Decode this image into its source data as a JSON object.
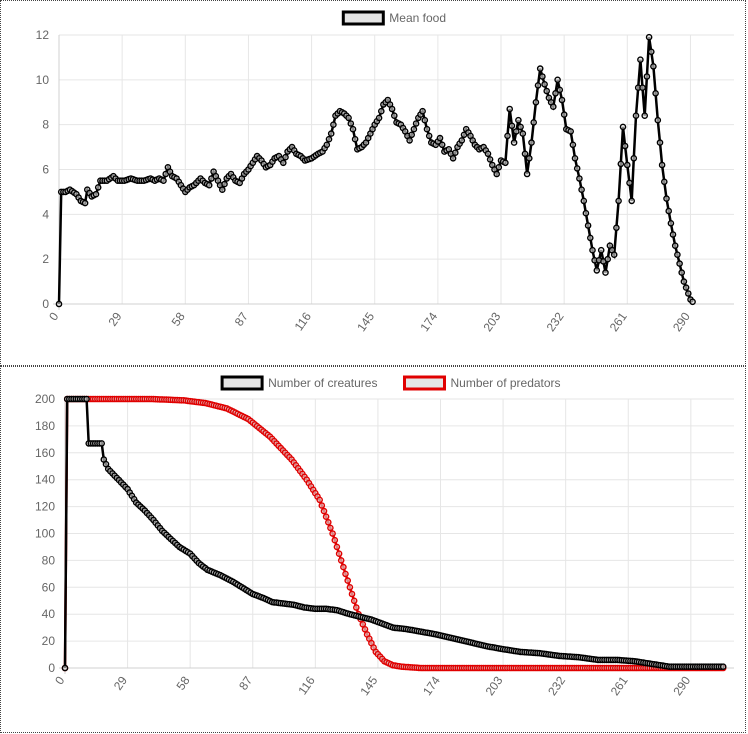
{
  "chart_data": [
    {
      "type": "line",
      "series": [
        {
          "name": "Mean food",
          "color": "#000000"
        }
      ],
      "x_ticks": [
        0,
        29,
        58,
        87,
        116,
        145,
        174,
        203,
        232,
        261,
        290
      ],
      "y_ticks": [
        0,
        2,
        4,
        6,
        8,
        10,
        12
      ],
      "xlim": [
        0,
        310
      ],
      "ylim": [
        0,
        12
      ],
      "legend": "top",
      "grid": true,
      "keypoints": [
        [
          0,
          0
        ],
        [
          1,
          5
        ],
        [
          3,
          5
        ],
        [
          5,
          5.1
        ],
        [
          8,
          4.9
        ],
        [
          10,
          4.6
        ],
        [
          12,
          4.5
        ],
        [
          13,
          5.1
        ],
        [
          15,
          4.8
        ],
        [
          17,
          4.9
        ],
        [
          19,
          5.5
        ],
        [
          22,
          5.5
        ],
        [
          25,
          5.7
        ],
        [
          27,
          5.5
        ],
        [
          30,
          5.5
        ],
        [
          33,
          5.6
        ],
        [
          36,
          5.5
        ],
        [
          39,
          5.5
        ],
        [
          42,
          5.6
        ],
        [
          44,
          5.5
        ],
        [
          46,
          5.6
        ],
        [
          48,
          5.5
        ],
        [
          50,
          6.1
        ],
        [
          52,
          5.7
        ],
        [
          54,
          5.6
        ],
        [
          56,
          5.3
        ],
        [
          58,
          5
        ],
        [
          60,
          5.2
        ],
        [
          62,
          5.3
        ],
        [
          65,
          5.6
        ],
        [
          67,
          5.4
        ],
        [
          69,
          5.3
        ],
        [
          71,
          5.9
        ],
        [
          73,
          5.5
        ],
        [
          75,
          5.1
        ],
        [
          77,
          5.6
        ],
        [
          79,
          5.8
        ],
        [
          81,
          5.5
        ],
        [
          83,
          5.4
        ],
        [
          85,
          5.8
        ],
        [
          87,
          6
        ],
        [
          89,
          6.3
        ],
        [
          91,
          6.6
        ],
        [
          93,
          6.4
        ],
        [
          95,
          6.1
        ],
        [
          97,
          6.2
        ],
        [
          99,
          6.5
        ],
        [
          101,
          6.6
        ],
        [
          103,
          6.3
        ],
        [
          105,
          6.8
        ],
        [
          107,
          7
        ],
        [
          109,
          6.7
        ],
        [
          111,
          6.6
        ],
        [
          113,
          6.4
        ],
        [
          116,
          6.5
        ],
        [
          119,
          6.7
        ],
        [
          121,
          6.8
        ],
        [
          123,
          7.1
        ],
        [
          125,
          7.6
        ],
        [
          127,
          8.4
        ],
        [
          129,
          8.6
        ],
        [
          131,
          8.5
        ],
        [
          133,
          8.3
        ],
        [
          135,
          7.8
        ],
        [
          137,
          6.9
        ],
        [
          139,
          7
        ],
        [
          141,
          7.2
        ],
        [
          143,
          7.6
        ],
        [
          145,
          8
        ],
        [
          147,
          8.3
        ],
        [
          149,
          8.9
        ],
        [
          151,
          9.1
        ],
        [
          153,
          8.7
        ],
        [
          155,
          8.1
        ],
        [
          157,
          8
        ],
        [
          159,
          7.7
        ],
        [
          161,
          7.3
        ],
        [
          163,
          7.8
        ],
        [
          165,
          8.3
        ],
        [
          167,
          8.6
        ],
        [
          169,
          7.8
        ],
        [
          171,
          7.2
        ],
        [
          173,
          7.1
        ],
        [
          175,
          7.4
        ],
        [
          177,
          6.8
        ],
        [
          179,
          6.9
        ],
        [
          181,
          6.5
        ],
        [
          183,
          7
        ],
        [
          185,
          7.3
        ],
        [
          187,
          7.8
        ],
        [
          189,
          7.5
        ],
        [
          191,
          7.1
        ],
        [
          193,
          6.9
        ],
        [
          195,
          7
        ],
        [
          197,
          6.7
        ],
        [
          199,
          6.2
        ],
        [
          201,
          5.8
        ],
        [
          203,
          6.4
        ],
        [
          205,
          6.3
        ],
        [
          207,
          8.7
        ],
        [
          209,
          7.2
        ],
        [
          211,
          8.2
        ],
        [
          213,
          7.6
        ],
        [
          215,
          5.8
        ],
        [
          217,
          7.2
        ],
        [
          219,
          9
        ],
        [
          221,
          10.5
        ],
        [
          223,
          9.8
        ],
        [
          225,
          9.2
        ],
        [
          227,
          8.8
        ],
        [
          229,
          10
        ],
        [
          231,
          9.1
        ],
        [
          233,
          7.8
        ],
        [
          235,
          7.7
        ],
        [
          237,
          6.5
        ],
        [
          239,
          5.6
        ],
        [
          241,
          4.6
        ],
        [
          243,
          3.5
        ],
        [
          245,
          2.4
        ],
        [
          247,
          1.5
        ],
        [
          249,
          2.4
        ],
        [
          251,
          1.4
        ],
        [
          253,
          2.6
        ],
        [
          255,
          2.2
        ],
        [
          257,
          4.6
        ],
        [
          259,
          7.9
        ],
        [
          261,
          6.2
        ],
        [
          263,
          4.6
        ],
        [
          265,
          8.4
        ],
        [
          267,
          10.9
        ],
        [
          269,
          8.4
        ],
        [
          271,
          11.9
        ],
        [
          273,
          10.6
        ],
        [
          275,
          8.2
        ],
        [
          277,
          6.2
        ],
        [
          279,
          4.7
        ],
        [
          281,
          3.6
        ],
        [
          283,
          2.6
        ],
        [
          285,
          1.8
        ],
        [
          287,
          1
        ],
        [
          290,
          0.2
        ],
        [
          291,
          0.1
        ]
      ]
    },
    {
      "type": "line",
      "series": [
        {
          "name": "Number of creatures",
          "color": "#000000"
        },
        {
          "name": "Number of predators",
          "color": "#e00000"
        }
      ],
      "x_ticks": [
        0,
        29,
        58,
        87,
        116,
        145,
        174,
        203,
        232,
        261,
        290
      ],
      "y_ticks": [
        0,
        20,
        40,
        60,
        80,
        100,
        120,
        140,
        160,
        180,
        200
      ],
      "xlim": [
        0,
        310
      ],
      "ylim": [
        0,
        200
      ],
      "legend": "top",
      "grid": true,
      "creatures_keypoints": [
        [
          0,
          0
        ],
        [
          1,
          200
        ],
        [
          10,
          200
        ],
        [
          11,
          167
        ],
        [
          17,
          167
        ],
        [
          18,
          155
        ],
        [
          20,
          148
        ],
        [
          23,
          143
        ],
        [
          26,
          138
        ],
        [
          29,
          133
        ],
        [
          33,
          123
        ],
        [
          37,
          117
        ],
        [
          41,
          110
        ],
        [
          45,
          102
        ],
        [
          49,
          96
        ],
        [
          53,
          90
        ],
        [
          58,
          85
        ],
        [
          62,
          78
        ],
        [
          66,
          73
        ],
        [
          72,
          69
        ],
        [
          78,
          64
        ],
        [
          84,
          58
        ],
        [
          87,
          55
        ],
        [
          92,
          52
        ],
        [
          96,
          49
        ],
        [
          101,
          48
        ],
        [
          106,
          47
        ],
        [
          111,
          45
        ],
        [
          116,
          44
        ],
        [
          121,
          44
        ],
        [
          126,
          43
        ],
        [
          132,
          40
        ],
        [
          137,
          38
        ],
        [
          142,
          36
        ],
        [
          147,
          33
        ],
        [
          152,
          30
        ],
        [
          158,
          29
        ],
        [
          165,
          27
        ],
        [
          172,
          25
        ],
        [
          180,
          22
        ],
        [
          188,
          19
        ],
        [
          196,
          16
        ],
        [
          203,
          14
        ],
        [
          211,
          12
        ],
        [
          220,
          11
        ],
        [
          229,
          9
        ],
        [
          238,
          8
        ],
        [
          247,
          6
        ],
        [
          256,
          6
        ],
        [
          264,
          5
        ],
        [
          272,
          3
        ],
        [
          280,
          1
        ],
        [
          290,
          1
        ],
        [
          305,
          1
        ]
      ],
      "predators_keypoints": [
        [
          0,
          0
        ],
        [
          1,
          200
        ],
        [
          10,
          200
        ],
        [
          40,
          200
        ],
        [
          55,
          199
        ],
        [
          65,
          197
        ],
        [
          75,
          193
        ],
        [
          85,
          185
        ],
        [
          95,
          172
        ],
        [
          105,
          155
        ],
        [
          112,
          140
        ],
        [
          118,
          125
        ],
        [
          124,
          100
        ],
        [
          128,
          80
        ],
        [
          132,
          60
        ],
        [
          136,
          40
        ],
        [
          140,
          25
        ],
        [
          144,
          12
        ],
        [
          148,
          5
        ],
        [
          152,
          2
        ],
        [
          156,
          1
        ],
        [
          165,
          0
        ],
        [
          180,
          0
        ],
        [
          200,
          0
        ],
        [
          240,
          0
        ],
        [
          280,
          0
        ],
        [
          305,
          0
        ]
      ]
    }
  ]
}
